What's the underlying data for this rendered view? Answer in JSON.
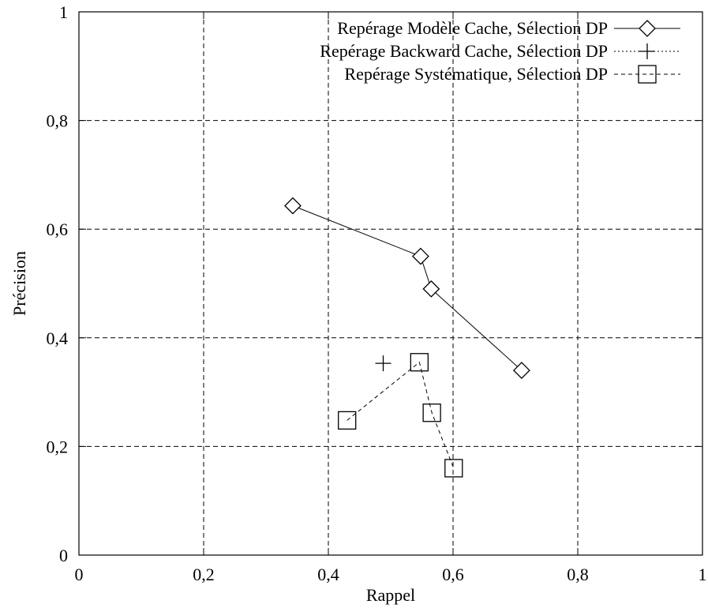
{
  "chart_data": {
    "type": "scatter",
    "title": "",
    "xlabel": "Rappel",
    "ylabel": "Précision",
    "xlim": [
      0,
      1
    ],
    "ylim": [
      0,
      1
    ],
    "x_ticks": [
      {
        "value": 0,
        "label": "0"
      },
      {
        "value": 0.2,
        "label": "0,2"
      },
      {
        "value": 0.4,
        "label": "0,4"
      },
      {
        "value": 0.6,
        "label": "0,6"
      },
      {
        "value": 0.8,
        "label": "0,8"
      },
      {
        "value": 1,
        "label": "1"
      }
    ],
    "y_ticks": [
      {
        "value": 0,
        "label": "0"
      },
      {
        "value": 0.2,
        "label": "0,2"
      },
      {
        "value": 0.4,
        "label": "0,4"
      },
      {
        "value": 0.6,
        "label": "0,6"
      },
      {
        "value": 0.8,
        "label": "0,8"
      },
      {
        "value": 1,
        "label": "1"
      }
    ],
    "grid": true,
    "legend_position": "top-right",
    "series": [
      {
        "name": "Repérage Modèle Cache, Sélection DP",
        "line": "solid",
        "marker": "diamond",
        "points": [
          [
            0.343,
            0.643
          ],
          [
            0.548,
            0.55
          ],
          [
            0.565,
            0.49
          ],
          [
            0.71,
            0.34
          ]
        ]
      },
      {
        "name": "Repérage Backward Cache, Sélection DP",
        "line": "dotted",
        "marker": "plus",
        "points": [
          [
            0.488,
            0.353
          ]
        ]
      },
      {
        "name": "Repérage Systématique, Sélection DP",
        "line": "dashed",
        "marker": "square",
        "points": [
          [
            0.43,
            0.248
          ],
          [
            0.546,
            0.355
          ],
          [
            0.566,
            0.262
          ],
          [
            0.601,
            0.16
          ]
        ]
      }
    ]
  }
}
